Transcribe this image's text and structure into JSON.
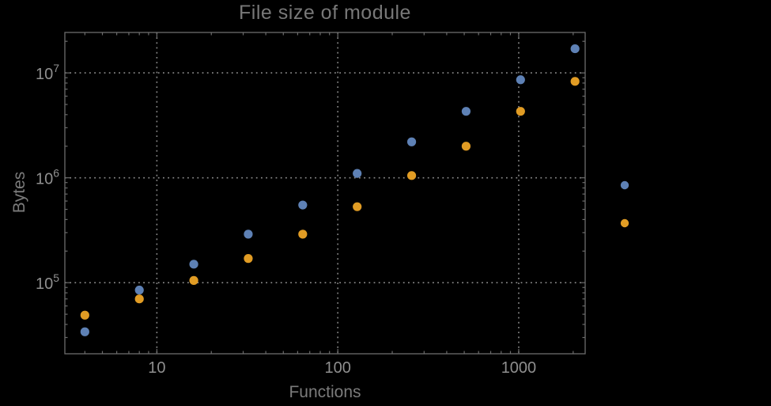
{
  "page": {
    "background": "#000000"
  },
  "chart_data": {
    "type": "scatter",
    "title": "File size of module",
    "xlabel": "Functions",
    "ylabel": "Bytes",
    "x_scale": "log",
    "y_scale": "log",
    "xlim": [
      3.1,
      2330
    ],
    "ylim": [
      21000,
      24300000
    ],
    "grid": {
      "style": "dotted",
      "x_values": [
        10,
        100,
        1000
      ],
      "y_values": [
        100000,
        1000000,
        10000000
      ]
    },
    "x_ticks": [
      {
        "value": 10,
        "label": "10"
      },
      {
        "value": 100,
        "label": "100"
      },
      {
        "value": 1000,
        "label": "1000"
      }
    ],
    "y_ticks": [
      {
        "value": 100000,
        "mantissa": "10",
        "exponent": "5"
      },
      {
        "value": 1000000,
        "mantissa": "10",
        "exponent": "6"
      },
      {
        "value": 10000000,
        "mantissa": "10",
        "exponent": "7"
      }
    ],
    "x": [
      4,
      8,
      16,
      32,
      64,
      128,
      256,
      512,
      1024,
      2048
    ],
    "series": [
      {
        "name": "blue",
        "color": "#5e81b5",
        "values": [
          34000,
          85000,
          150000,
          290000,
          550000,
          1100000,
          2200000,
          4300000,
          8600000,
          17000000
        ]
      },
      {
        "name": "orange",
        "color": "#e19c24",
        "values": [
          49000,
          70000,
          105000,
          170000,
          290000,
          530000,
          1050000,
          2000000,
          4300000,
          8300000
        ]
      }
    ],
    "legend": {
      "position": "right-outside",
      "marker_colors": [
        "#5e81b5",
        "#e19c24"
      ]
    }
  },
  "colors": {
    "background": "#000000",
    "frame": "#6c6c6c",
    "grid": "#8a8a8a",
    "tick_label": "#8f8f8f",
    "title_text": "#787878",
    "axis_label_text": "#7b7b7b",
    "series_blue": "#5e81b5",
    "series_orange": "#e19c24"
  }
}
